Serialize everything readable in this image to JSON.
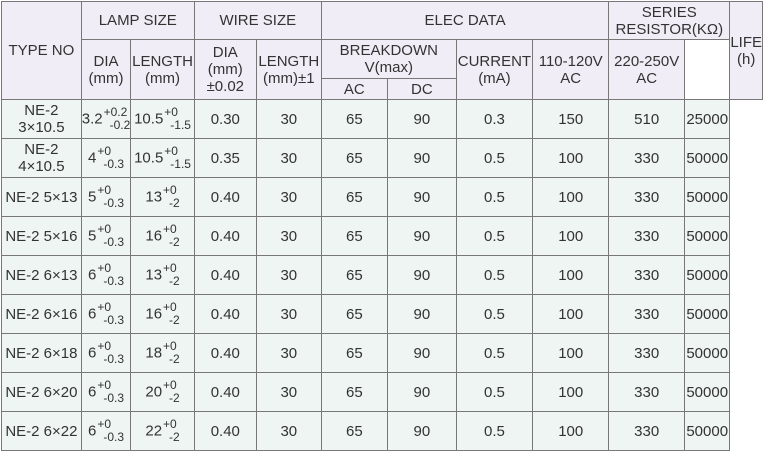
{
  "headers": {
    "type_no": "TYPE NO",
    "lamp_size": "LAMP SIZE",
    "wire_size": "WIRE SIZE",
    "elec_data": "ELEC DATA",
    "series_resistor_1": "SERIES",
    "series_resistor_2": "RESISTOR(KΩ)",
    "life_1": "LIFE",
    "life_2": "(h)",
    "lamp_dia_1": "DIA",
    "lamp_dia_2": "(mm)",
    "lamp_length_1": "LENGTH",
    "lamp_length_2": "(mm)",
    "wire_dia_1": "DIA",
    "wire_dia_2": "(mm)",
    "wire_dia_3": "±0.02",
    "wire_length_1": "LENGTH",
    "wire_length_2": "(mm)±1",
    "breakdown_1": "BREAKDOWN",
    "breakdown_2": "V(max)",
    "current_1": "CURRENT",
    "current_2": "(mA)",
    "r110_1": "110-120V",
    "r110_2": "AC",
    "r220_1": "220-250V",
    "r220_2": "AC",
    "ac": "AC",
    "dc": "DC"
  },
  "rows": [
    {
      "type1": "NE-2",
      "type2": "3×10.5",
      "dia": "3.2",
      "dia_up": "+0.2",
      "dia_lo": "-0.2",
      "len": "10.5",
      "len_up": "+0",
      "len_lo": "-1.5",
      "wdia": "0.30",
      "wlen": "30",
      "ac": "65",
      "dc": "90",
      "cur": "0.3",
      "r110": "150",
      "r220": "510",
      "life": "25000"
    },
    {
      "type1": "NE-2",
      "type2": "4×10.5",
      "dia": "4",
      "dia_up": "+0",
      "dia_lo": "-0.3",
      "len": "10.5",
      "len_up": "+0",
      "len_lo": "-1.5",
      "wdia": "0.35",
      "wlen": "30",
      "ac": "65",
      "dc": "90",
      "cur": "0.5",
      "r110": "100",
      "r220": "330",
      "life": "50000"
    },
    {
      "type1": "NE-2 5×13",
      "type2": "",
      "dia": "5",
      "dia_up": "+0",
      "dia_lo": "-0.3",
      "len": "13",
      "len_up": "+0",
      "len_lo": "-2",
      "wdia": "0.40",
      "wlen": "30",
      "ac": "65",
      "dc": "90",
      "cur": "0.5",
      "r110": "100",
      "r220": "330",
      "life": "50000"
    },
    {
      "type1": "NE-2 5×16",
      "type2": "",
      "dia": "5",
      "dia_up": "+0",
      "dia_lo": "-0.3",
      "len": "16",
      "len_up": "+0",
      "len_lo": "-2",
      "wdia": "0.40",
      "wlen": "30",
      "ac": "65",
      "dc": "90",
      "cur": "0.5",
      "r110": "100",
      "r220": "330",
      "life": "50000"
    },
    {
      "type1": "NE-2 6×13",
      "type2": "",
      "dia": "6",
      "dia_up": "+0",
      "dia_lo": "-0.3",
      "len": "13",
      "len_up": "+0",
      "len_lo": "-2",
      "wdia": "0.40",
      "wlen": "30",
      "ac": "65",
      "dc": "90",
      "cur": "0.5",
      "r110": "100",
      "r220": "330",
      "life": "50000"
    },
    {
      "type1": "NE-2 6×16",
      "type2": "",
      "dia": "6",
      "dia_up": "+0",
      "dia_lo": "-0.3",
      "len": "16",
      "len_up": "+0",
      "len_lo": "-2",
      "wdia": "0.40",
      "wlen": "30",
      "ac": "65",
      "dc": "90",
      "cur": "0.5",
      "r110": "100",
      "r220": "330",
      "life": "50000"
    },
    {
      "type1": "NE-2 6×18",
      "type2": "",
      "dia": "6",
      "dia_up": "+0",
      "dia_lo": "-0.3",
      "len": "18",
      "len_up": "+0",
      "len_lo": "-2",
      "wdia": "0.40",
      "wlen": "30",
      "ac": "65",
      "dc": "90",
      "cur": "0.5",
      "r110": "100",
      "r220": "330",
      "life": "50000"
    },
    {
      "type1": "NE-2 6×20",
      "type2": "",
      "dia": "6",
      "dia_up": "+0",
      "dia_lo": "-0.3",
      "len": "20",
      "len_up": "+0",
      "len_lo": "-2",
      "wdia": "0.40",
      "wlen": "30",
      "ac": "65",
      "dc": "90",
      "cur": "0.5",
      "r110": "100",
      "r220": "330",
      "life": "50000"
    },
    {
      "type1": "NE-2 6×22",
      "type2": "",
      "dia": "6",
      "dia_up": "+0",
      "dia_lo": "-0.3",
      "len": "22",
      "len_up": "+0",
      "len_lo": "-2",
      "wdia": "0.40",
      "wlen": "30",
      "ac": "65",
      "dc": "90",
      "cur": "0.5",
      "r110": "100",
      "r220": "330",
      "life": "50000"
    }
  ],
  "colors": {
    "header_bg": "#f1edf6",
    "body_bg": "#eef5f2",
    "border": "#777777"
  }
}
